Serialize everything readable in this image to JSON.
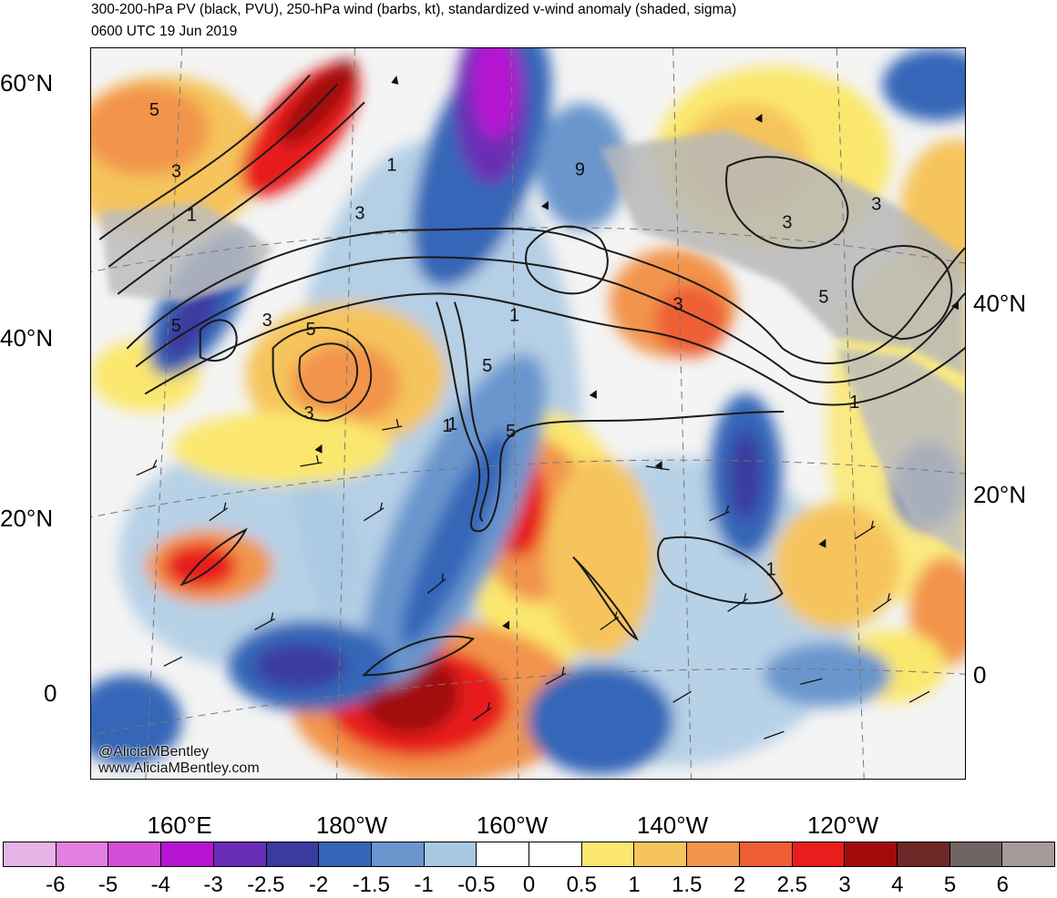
{
  "title_line1": "300-200-hPa PV (black, PVU), 250-hPa wind (barbs, kt), standardized v-wind anomaly (shaded, sigma)",
  "title_line2": "0600 UTC 19 Jun 2019",
  "credit": {
    "twitter": "@AliciaMBentley",
    "website": "www.AliciaMBentley.com"
  },
  "lat_labels_left": [
    "60°N",
    "40°N",
    "20°N",
    "0"
  ],
  "lat_labels_right": [
    "40°N",
    "20°N",
    "0"
  ],
  "lon_labels": [
    "160°E",
    "180°W",
    "160°W",
    "140°W",
    "120°W"
  ],
  "pv_contour_labels": [
    "5",
    "3",
    "1",
    "3",
    "1",
    "9",
    "3",
    "5",
    "3",
    "5",
    "1",
    "3",
    "5",
    "5",
    "3",
    "1",
    "5",
    "1",
    "1",
    "3",
    "1"
  ],
  "colorbar": {
    "colors": [
      "#e8b3e6",
      "#e27fe0",
      "#d44ed8",
      "#b514d2",
      "#6a2db5",
      "#3a3ba0",
      "#3466b8",
      "#6a96cd",
      "#a8c8e3",
      "#ffffff",
      "#ffffff",
      "#fbe76d",
      "#f5c45c",
      "#f2944b",
      "#ee5e35",
      "#e81d1c",
      "#a20b0b",
      "#6e2828",
      "#716563",
      "#a59a98"
    ],
    "labels": [
      "-6",
      "-5",
      "-4",
      "-3",
      "-2.5",
      "-2",
      "-1.5",
      "-1",
      "-0.5",
      "0",
      "0.5",
      "1",
      "1.5",
      "2",
      "2.5",
      "3",
      "4",
      "5",
      "6"
    ]
  }
}
